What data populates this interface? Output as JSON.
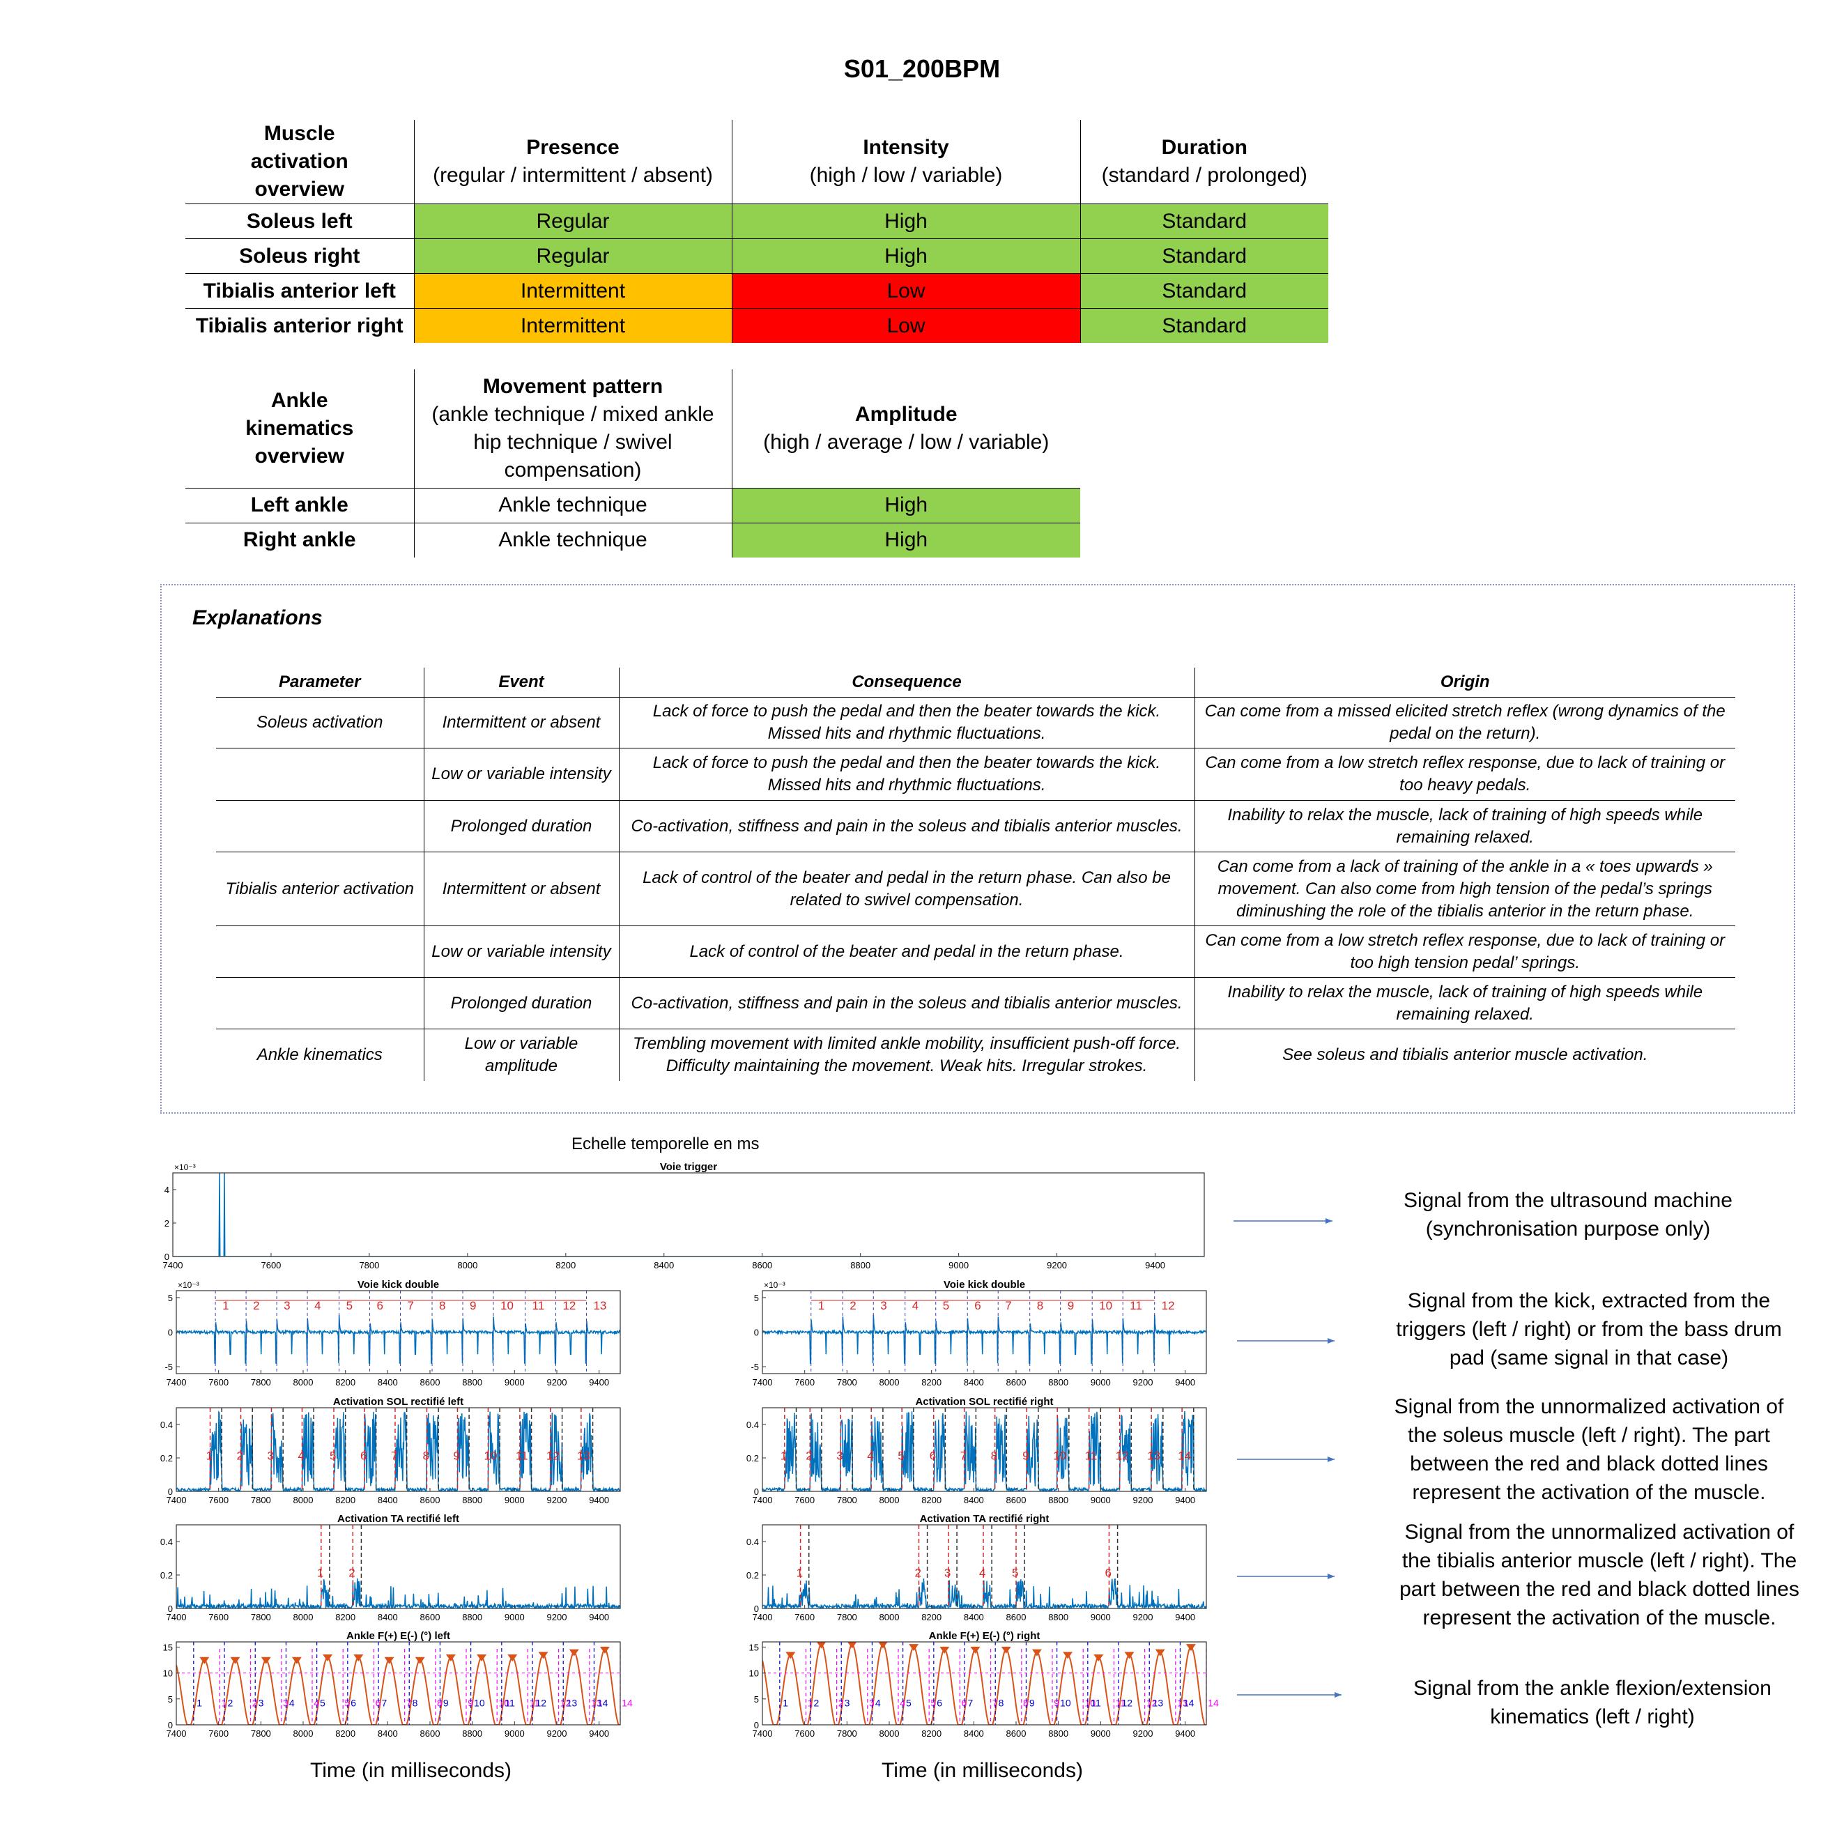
{
  "title": "S01_200BPM",
  "muscle_table": {
    "header_label": "Muscle activation overview",
    "cols": [
      {
        "name": "Presence",
        "sub": "(regular / intermittent / absent)"
      },
      {
        "name": "Intensity",
        "sub": "(high / low / variable)"
      },
      {
        "name": "Duration",
        "sub": "(standard / prolonged)"
      }
    ],
    "rows": [
      {
        "label": "Soleus left",
        "presence": "Regular",
        "intensity": "High",
        "duration": "Standard"
      },
      {
        "label": "Soleus right",
        "presence": "Regular",
        "intensity": "High",
        "duration": "Standard"
      },
      {
        "label": "Tibialis anterior left",
        "presence": "Intermittent",
        "intensity": "Low",
        "duration": "Standard"
      },
      {
        "label": "Tibialis anterior right",
        "presence": "Intermittent",
        "intensity": "Low",
        "duration": "Standard"
      }
    ]
  },
  "ankle_table": {
    "header_label": "Ankle kinematics overview",
    "cols": [
      {
        "name": "Movement pattern",
        "sub": "(ankle technique / mixed ankle hip technique / swivel compensation)"
      },
      {
        "name": "Amplitude",
        "sub": "(high / average / low / variable)"
      }
    ],
    "rows": [
      {
        "label": "Left ankle",
        "pattern": "Ankle technique",
        "amplitude": "High"
      },
      {
        "label": "Right ankle",
        "pattern": "Ankle technique",
        "amplitude": "High"
      }
    ]
  },
  "colors": {
    "green": "#92d050",
    "orange": "#ffc000",
    "red": "#ff0000",
    "signal": "#0072bd",
    "marker_red": "#d62728",
    "marker_dark": "#333333",
    "orange_marker": "#d95319",
    "magenta": "#ff00ff",
    "blue": "#0000cc"
  },
  "explanations": {
    "title": "Explanations",
    "headers": [
      "Parameter",
      "Event",
      "Consequence",
      "Origin"
    ],
    "rows": [
      {
        "parameter": "Soleus activation",
        "event": "Intermittent or absent",
        "consequence": "Lack of force to push the pedal and then the beater towards the kick. Missed hits and rhythmic fluctuations.",
        "origin": "Can come from a missed elicited stretch reflex (wrong dynamics of the pedal on the return)."
      },
      {
        "parameter": "",
        "event": "Low or variable intensity",
        "consequence": "Lack of force to push the pedal and then the beater towards the kick. Missed hits and rhythmic fluctuations.",
        "origin": "Can come from a low stretch reflex response, due to lack of training or too heavy pedals."
      },
      {
        "parameter": "",
        "event": "Prolonged duration",
        "consequence": "Co-activation, stiffness and pain in the soleus and tibialis anterior muscles.",
        "origin": "Inability to relax the muscle, lack of training of high speeds while remaining relaxed."
      },
      {
        "parameter": "Tibialis anterior activation",
        "event": "Intermittent or absent",
        "consequence": "Lack of control of the beater and pedal in the return phase. Can also be related to swivel compensation.",
        "origin": "Can come from a lack of training of the ankle in a « toes upwards » movement. Can also come from high tension of the pedal’s springs diminushing the role of the tibialis anterior in the return phase."
      },
      {
        "parameter": "",
        "event": "Low or variable intensity",
        "consequence": "Lack of control of the beater and pedal in the return phase.",
        "origin": "Can come from a low stretch reflex response, due to lack of training or too high tension pedal’ springs."
      },
      {
        "parameter": "",
        "event": "Prolonged duration",
        "consequence": "Co-activation, stiffness and pain in the soleus and tibialis anterior muscles.",
        "origin": "Inability to relax the muscle, lack of training of high speeds while remaining relaxed."
      },
      {
        "parameter": "Ankle kinematics",
        "event": "Low or variable amplitude",
        "consequence": "Trembling movement with limited ankle mobility, insufficient push-off force. Difficulty maintaining the movement. Weak hits. Irregular strokes.",
        "origin": "See soleus and tibialis anterior muscle activation."
      }
    ]
  },
  "figure": {
    "heading": "Echelle temporelle en ms",
    "xlabel": "Time (in milliseconds)",
    "descriptions": [
      "Signal from the ultrasound machine (synchronisation purpose only)",
      "Signal from the kick, extracted from the triggers (left / right) or from the bass drum pad (same signal in that case)",
      "Signal from the unnormalized activation of the soleus muscle (left / right). The part between the red and black dotted lines represent the activation of the muscle.",
      "Signal from the unnormalized activation of the tibialis anterior muscle (left / right). The part between the red and black dotted lines represent the activation of the muscle.",
      "Signal from the ankle flexion/extension kinematics (left / right)"
    ]
  },
  "chart_data": [
    {
      "type": "line",
      "title": "Voie trigger",
      "xlim": [
        7400,
        9500
      ],
      "xticks": [
        7400,
        7600,
        7800,
        8000,
        8200,
        8400,
        8600,
        8800,
        9000,
        9200,
        9400
      ],
      "yticks": [
        0,
        2,
        4
      ],
      "ylim": [
        0,
        5
      ],
      "exponent": "×10⁻³",
      "pulses_x": [
        7495,
        7505
      ]
    },
    {
      "type": "line",
      "title": "Voie kick double",
      "side": "left",
      "xlim": [
        7400,
        9500
      ],
      "xticks": [
        7400,
        7600,
        7800,
        8000,
        8200,
        8400,
        8600,
        8800,
        9000,
        9200,
        9400
      ],
      "yticks": [
        -5,
        0,
        5
      ],
      "ylim": [
        -6,
        6
      ],
      "exponent": "×10⁻³",
      "hits": [
        1,
        2,
        3,
        4,
        5,
        6,
        7,
        8,
        9,
        10,
        11,
        12,
        13
      ],
      "hit_x": [
        7585,
        7730,
        7875,
        8020,
        8170,
        8315,
        8460,
        8610,
        8755,
        8900,
        9050,
        9195,
        9340
      ]
    },
    {
      "type": "line",
      "title": "Voie kick double",
      "side": "right",
      "xlim": [
        7400,
        9500
      ],
      "xticks": [
        7400,
        7600,
        7800,
        8000,
        8200,
        8400,
        8600,
        8800,
        9000,
        9200,
        9400
      ],
      "yticks": [
        -5,
        0,
        5
      ],
      "ylim": [
        -6,
        6
      ],
      "exponent": "×10⁻³",
      "hits": [
        1,
        2,
        3,
        4,
        5,
        6,
        7,
        8,
        9,
        10,
        11,
        12
      ],
      "hit_x": [
        7630,
        7780,
        7925,
        8075,
        8220,
        8370,
        8515,
        8665,
        8810,
        8960,
        9105,
        9255
      ]
    },
    {
      "type": "line",
      "title": "Activation SOL rectifié left",
      "side": "left",
      "xlim": [
        7400,
        9500
      ],
      "xticks": [
        7400,
        7600,
        7800,
        8000,
        8200,
        8400,
        8600,
        8800,
        9000,
        9200,
        9400
      ],
      "yticks": [
        0,
        0.2,
        0.4
      ],
      "ylim": [
        0,
        0.5
      ],
      "bursts": [
        1,
        2,
        3,
        4,
        5,
        6,
        7,
        8,
        9,
        10,
        11,
        12,
        13
      ],
      "burst_x": [
        7560,
        7705,
        7850,
        7995,
        8145,
        8290,
        8435,
        8585,
        8730,
        8875,
        9025,
        9170,
        9315
      ]
    },
    {
      "type": "line",
      "title": "Activation SOL rectifié right",
      "side": "right",
      "xlim": [
        7400,
        9500
      ],
      "xticks": [
        7400,
        7600,
        7800,
        8000,
        8200,
        8400,
        8600,
        8800,
        9000,
        9200,
        9400
      ],
      "yticks": [
        0,
        0.2,
        0.4
      ],
      "ylim": [
        0,
        0.5
      ],
      "bursts": [
        1,
        2,
        3,
        4,
        5,
        6,
        7,
        8,
        9,
        10,
        11,
        12,
        13,
        14
      ],
      "burst_x": [
        7505,
        7625,
        7770,
        7915,
        8060,
        8210,
        8355,
        8500,
        8650,
        8795,
        8945,
        9090,
        9240,
        9385
      ]
    },
    {
      "type": "line",
      "title": "Activation TA rectifié left",
      "side": "left",
      "xlim": [
        7400,
        9500
      ],
      "xticks": [
        7400,
        7600,
        7800,
        8000,
        8200,
        8400,
        8600,
        8800,
        9000,
        9200,
        9400
      ],
      "yticks": [
        0,
        0.2,
        0.4
      ],
      "ylim": [
        0,
        0.5
      ],
      "bursts": [
        1,
        2
      ],
      "burst_x": [
        8085,
        8235
      ]
    },
    {
      "type": "line",
      "title": "Activation TA rectifié right",
      "side": "right",
      "xlim": [
        7400,
        9500
      ],
      "xticks": [
        7400,
        7600,
        7800,
        8000,
        8200,
        8400,
        8600,
        8800,
        9000,
        9200,
        9400
      ],
      "yticks": [
        0,
        0.2,
        0.4
      ],
      "ylim": [
        0,
        0.5
      ],
      "bursts": [
        1,
        2,
        3,
        4,
        5,
        6
      ],
      "burst_x": [
        7580,
        8140,
        8280,
        8445,
        8600,
        9040
      ]
    },
    {
      "type": "line",
      "title": "Ankle F(+) E(-) (°) left",
      "side": "left",
      "xlim": [
        7400,
        9500
      ],
      "xticks": [
        7400,
        7600,
        7800,
        8000,
        8200,
        8400,
        8600,
        8800,
        9000,
        9200,
        9400
      ],
      "yticks": [
        0,
        5,
        10,
        15
      ],
      "ylim": [
        0,
        16
      ],
      "peaks": [
        12,
        12,
        12,
        12,
        12.5,
        12.5,
        12,
        12,
        12.5,
        12.5,
        12.5,
        13,
        13.5,
        14
      ],
      "cycles": 14
    },
    {
      "type": "line",
      "title": "Ankle F(+) E(-) (°) right",
      "side": "right",
      "xlim": [
        7400,
        9500
      ],
      "xticks": [
        7400,
        7600,
        7800,
        8000,
        8200,
        8400,
        8600,
        8800,
        9000,
        9200,
        9400
      ],
      "yticks": [
        0,
        5,
        10,
        15
      ],
      "ylim": [
        0,
        16
      ],
      "peaks": [
        13,
        15,
        15,
        15,
        14.5,
        14,
        14,
        14,
        13.5,
        13,
        12.5,
        13,
        13.5,
        14.5
      ],
      "cycles": 14
    }
  ]
}
